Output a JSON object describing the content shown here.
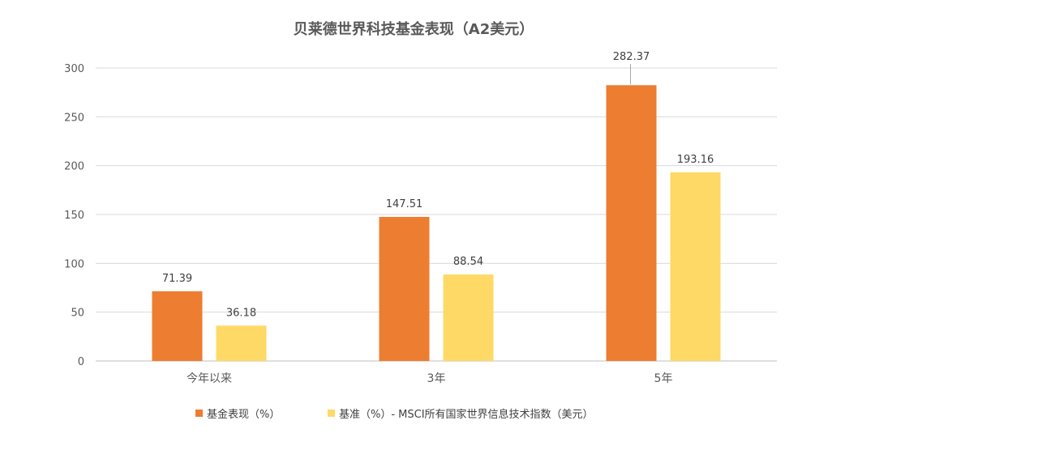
{
  "chart_data": {
    "type": "bar",
    "title": "贝莱德世界科技基金表现（A2美元）",
    "categories": [
      "今年以来",
      "3年",
      "5年"
    ],
    "series": [
      {
        "name": "基金表现（%）",
        "color": "#ED7D31",
        "values": [
          71.39,
          147.51,
          282.37
        ]
      },
      {
        "name": "基准（%）- MSCI所有国家世界信息技术指数（美元）",
        "color": "#FFD966",
        "values": [
          36.18,
          88.54,
          193.16
        ]
      }
    ],
    "data_labels": [
      [
        "71.39",
        "147.51",
        "282.37"
      ],
      [
        "36.18",
        "88.54",
        "193.16"
      ]
    ],
    "ylim": [
      0,
      300
    ],
    "yticks": [
      0,
      50,
      100,
      150,
      200,
      250,
      300
    ],
    "grid": true,
    "legend_position": "bottom",
    "xlabel": "",
    "ylabel": ""
  }
}
